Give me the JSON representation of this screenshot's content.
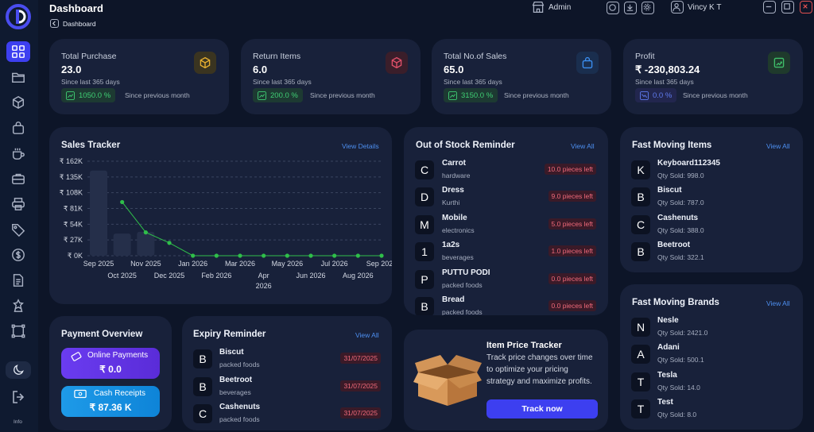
{
  "header": {
    "title": "Dashboard",
    "breadcrumb": "Dashboard",
    "role": "Admin",
    "user": "Vincy K T"
  },
  "sidebar": {
    "info": "Info",
    "items": [
      "grid-icon",
      "folder-icon",
      "cube-icon",
      "bag-icon",
      "cup-icon",
      "briefcase-icon",
      "printer-icon",
      "tag-icon",
      "dollar-icon",
      "document-icon",
      "badge-icon",
      "frame-icon"
    ]
  },
  "stats": [
    {
      "label": "Total Purchase",
      "value": "23.0",
      "since": "Since last 365 days",
      "change": "1050.0 %",
      "compare": "Since previous month",
      "accent": "#e8b030"
    },
    {
      "label": "Return Items",
      "value": "6.0",
      "since": "Since last 365 days",
      "change": "200.0 %",
      "compare": "Since previous month",
      "accent": "#e0506a"
    },
    {
      "label": "Total No.of Sales",
      "value": "65.0",
      "since": "Since last 365 days",
      "change": "3150.0 %",
      "compare": "Since previous month",
      "accent": "#3b8ef0"
    },
    {
      "label": "Profit",
      "value": "₹ -230,803.24",
      "since": "Since last 365 days",
      "change": "0.0 %",
      "compare": "Since previous month",
      "accent": "#3fbf6a"
    }
  ],
  "sales_tracker": {
    "title": "Sales Tracker",
    "link": "View Details"
  },
  "chart_data": {
    "type": "bar",
    "title": "",
    "xlabel": "",
    "ylabel": "",
    "y_ticks": [
      "₹ 0K",
      "₹ 27K",
      "₹ 54K",
      "₹ 81K",
      "₹ 108K",
      "₹ 135K",
      "₹ 162K"
    ],
    "ylim": [
      0,
      162
    ],
    "categories": [
      "Sep 2025",
      "Oct 2025",
      "Nov 2025",
      "Dec 2025",
      "Jan 2026",
      "Feb 2026",
      "Mar 2026",
      "Apr 2026",
      "May 2026",
      "Jun 2026",
      "Jul 2026",
      "Aug 2026",
      "Sep 2026"
    ],
    "series": [
      {
        "name": "bars",
        "values": [
          146,
          38,
          41,
          0,
          0,
          0,
          0,
          0,
          0,
          0,
          0,
          0,
          0
        ],
        "color": "#252f4a"
      },
      {
        "name": "line",
        "values": [
          null,
          92,
          40,
          22,
          0,
          0,
          0,
          0,
          0,
          0,
          0,
          0,
          0
        ],
        "color": "#2fbf4a"
      }
    ],
    "grid": true
  },
  "out_of_stock": {
    "title": "Out of Stock Reminder",
    "link": "View All",
    "items": [
      {
        "initial": "C",
        "name": "Carrot",
        "category": "hardware",
        "qty": "10.0 pieces left"
      },
      {
        "initial": "D",
        "name": "Dress",
        "category": "Kurthi",
        "qty": "9.0 pieces left"
      },
      {
        "initial": "M",
        "name": "Mobile",
        "category": "electronics",
        "qty": "5.0 pieces left"
      },
      {
        "initial": "1",
        "name": "1a2s",
        "category": "beverages",
        "qty": "1.0 pieces left"
      },
      {
        "initial": "P",
        "name": "PUTTU PODI",
        "category": "packed foods",
        "qty": "0.0 pieces left"
      },
      {
        "initial": "B",
        "name": "Bread",
        "category": "packed foods",
        "qty": "0.0 pieces left"
      }
    ]
  },
  "fast_items": {
    "title": "Fast Moving Items",
    "link": "View All",
    "items": [
      {
        "initial": "K",
        "name": "Keyboard112345",
        "qty": "Qty Sold: 998.0"
      },
      {
        "initial": "B",
        "name": "Biscut",
        "qty": "Qty Sold: 787.0"
      },
      {
        "initial": "C",
        "name": "Cashenuts",
        "qty": "Qty Sold: 388.0"
      },
      {
        "initial": "B",
        "name": "Beetroot",
        "qty": "Qty Sold: 322.1"
      }
    ]
  },
  "fast_brands": {
    "title": "Fast Moving Brands",
    "link": "View All",
    "items": [
      {
        "initial": "N",
        "name": "Nesle",
        "qty": "Qty Sold: 2421.0"
      },
      {
        "initial": "A",
        "name": "Adani",
        "qty": "Qty Sold: 500.1"
      },
      {
        "initial": "T",
        "name": "Tesla",
        "qty": "Qty Sold: 14.0"
      },
      {
        "initial": "T",
        "name": "Test",
        "qty": "Qty Sold: 8.0"
      }
    ]
  },
  "payment": {
    "title": "Payment Overview",
    "online_label": "Online Payments",
    "online_value": "₹ 0.0",
    "cash_label": "Cash Receipts",
    "cash_value": "₹ 87.36 K"
  },
  "expiry": {
    "title": "Expiry Reminder",
    "link": "View All",
    "items": [
      {
        "initial": "B",
        "name": "Biscut",
        "category": "packed foods",
        "date": "31/07/2025"
      },
      {
        "initial": "B",
        "name": "Beetroot",
        "category": "beverages",
        "date": "31/07/2025"
      },
      {
        "initial": "C",
        "name": "Cashenuts",
        "category": "packed foods",
        "date": "31/07/2025"
      }
    ]
  },
  "price_tracker": {
    "title": "Item Price Tracker",
    "line1": "Track price changes over time",
    "line2": "to optimize your pricing",
    "line3": "strategy and maximize profits.",
    "button": "Track now"
  }
}
